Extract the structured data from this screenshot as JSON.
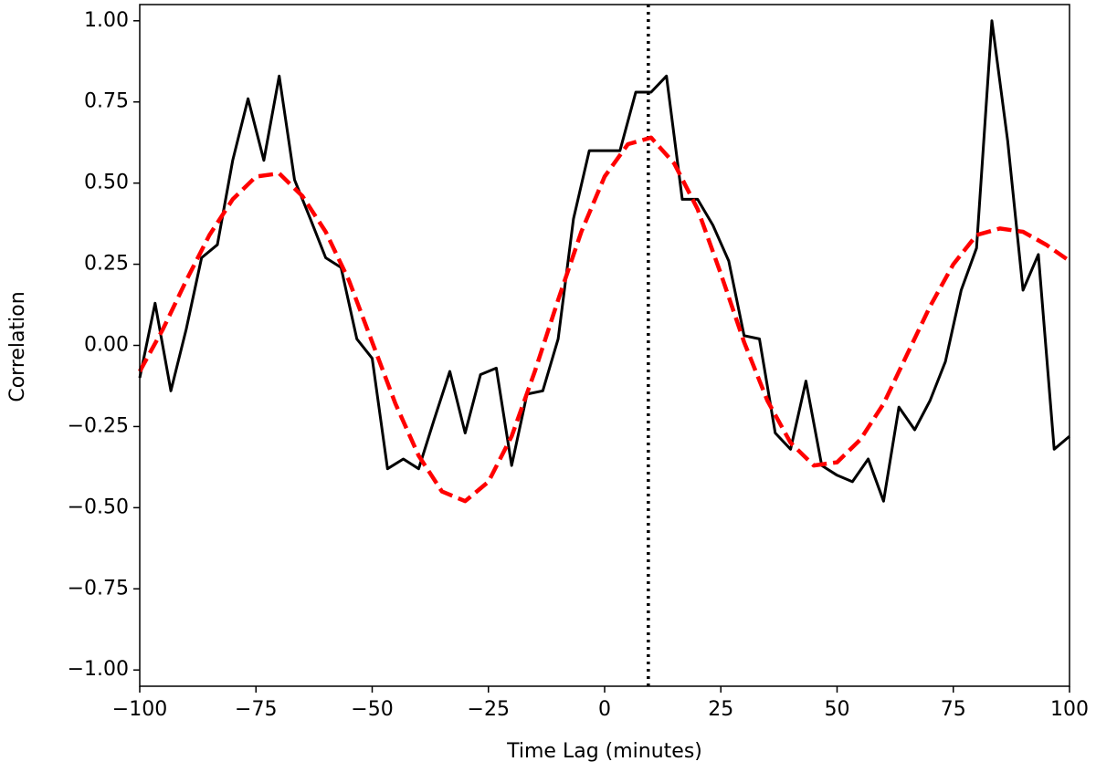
{
  "chart_data": {
    "type": "line",
    "x_label": "Time Lag (minutes)",
    "y_label": "Correlation",
    "xlim": [
      -100,
      100
    ],
    "ylim": [
      -1.05,
      1.05
    ],
    "xticks": [
      {
        "value": -100,
        "label": "−100"
      },
      {
        "value": -75,
        "label": "−75"
      },
      {
        "value": -50,
        "label": "−50"
      },
      {
        "value": -25,
        "label": "−25"
      },
      0,
      25,
      50,
      75,
      100
    ],
    "yticks": [
      {
        "value": -1,
        "label": "−1.00"
      },
      {
        "value": -0.75,
        "label": "−0.75"
      },
      {
        "value": -0.5,
        "label": "−0.50"
      },
      {
        "value": -0.25,
        "label": "−0.25"
      },
      {
        "value": 0,
        "label": "0.00"
      },
      {
        "value": 0.25,
        "label": "0.25"
      },
      {
        "value": 0.5,
        "label": "0.50"
      },
      {
        "value": 0.75,
        "label": "0.75"
      },
      {
        "value": 1,
        "label": "1.00"
      }
    ],
    "vline_x": 9.4,
    "series": [
      {
        "color": "#000000",
        "style": "solid",
        "x": [
          -100,
          -96.7,
          -93.3,
          -90,
          -86.7,
          -83.3,
          -80,
          -76.7,
          -73.3,
          -70,
          -66.7,
          -63.3,
          -60,
          -56.7,
          -53.3,
          -50,
          -46.7,
          -43.3,
          -40,
          -36.7,
          -33.3,
          -30,
          -26.7,
          -23.3,
          -20,
          -16.7,
          -13.3,
          -10,
          -6.7,
          -3.3,
          0,
          3.3,
          6.7,
          10,
          13.3,
          16.7,
          20,
          23.3,
          26.7,
          30,
          33.3,
          36.7,
          40,
          43.3,
          46.7,
          50,
          53.3,
          56.7,
          60,
          63.3,
          66.7,
          70,
          73.3,
          76.7,
          80,
          83.3,
          86.7,
          90,
          93.3,
          96.7,
          100
        ],
        "values": [
          -0.1,
          0.13,
          -0.14,
          0.05,
          0.27,
          0.31,
          0.57,
          0.76,
          0.57,
          0.83,
          0.51,
          0.39,
          0.27,
          0.24,
          0.02,
          -0.04,
          -0.38,
          -0.35,
          -0.38,
          -0.23,
          -0.08,
          -0.27,
          -0.09,
          -0.07,
          -0.37,
          -0.15,
          -0.14,
          0.02,
          0.39,
          0.6,
          0.6,
          0.6,
          0.78,
          0.78,
          0.83,
          0.45,
          0.45,
          0.37,
          0.26,
          0.03,
          0.02,
          -0.27,
          -0.32,
          -0.11,
          -0.37,
          -0.4,
          -0.42,
          -0.35,
          -0.48,
          -0.19,
          -0.26,
          -0.17,
          -0.05,
          0.17,
          0.3,
          1.0,
          0.63,
          0.17,
          0.28,
          -0.32,
          -0.28
        ]
      },
      {
        "color": "#ff0000",
        "style": "dashed",
        "x": [
          -100,
          -95,
          -90,
          -85,
          -80,
          -75,
          -70,
          -65,
          -60,
          -55,
          -50,
          -45,
          -40,
          -35,
          -30,
          -25,
          -20,
          -15,
          -10,
          -5,
          0,
          5,
          10,
          15,
          20,
          25,
          30,
          35,
          40,
          45,
          50,
          55,
          60,
          65,
          70,
          75,
          80,
          85,
          90,
          95,
          100
        ],
        "values": [
          -0.08,
          0.05,
          0.2,
          0.34,
          0.45,
          0.52,
          0.53,
          0.46,
          0.35,
          0.2,
          0.01,
          -0.18,
          -0.34,
          -0.45,
          -0.48,
          -0.42,
          -0.28,
          -0.08,
          0.14,
          0.35,
          0.52,
          0.62,
          0.64,
          0.56,
          0.42,
          0.22,
          0.01,
          -0.17,
          -0.3,
          -0.37,
          -0.36,
          -0.29,
          -0.18,
          -0.03,
          0.12,
          0.25,
          0.34,
          0.36,
          0.35,
          0.31,
          0.26
        ]
      }
    ]
  }
}
